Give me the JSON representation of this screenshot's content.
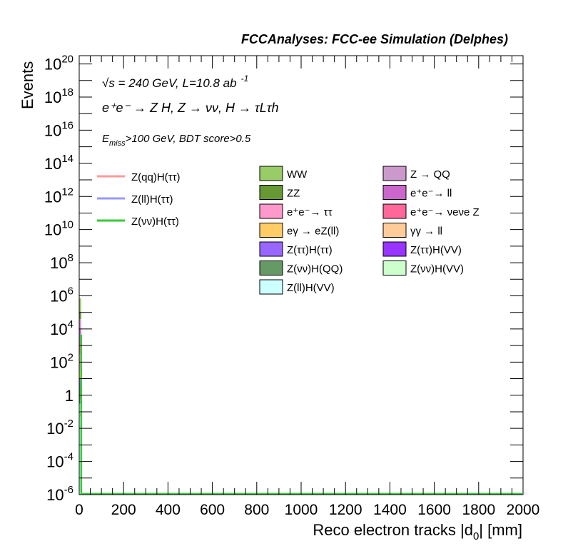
{
  "chart_data": {
    "type": "bar",
    "title": "FCCAnalyses: FCC-ee Simulation (Delphes)",
    "xlabel": "Reco electron tracks |d0| [mm]",
    "xlabel_main": "Reco electron tracks |d",
    "xlabel_sub": "0",
    "xlabel_end": "| [mm]",
    "ylabel": "Events",
    "xlim": [
      0,
      2000
    ],
    "ylim_log10": [
      -6,
      20.5
    ],
    "y_scale": "log",
    "grid": false,
    "legend_position": "top",
    "x_ticks": [
      0,
      200,
      400,
      600,
      800,
      1000,
      1200,
      1400,
      1600,
      1800,
      2000
    ],
    "x_tick_labels": [
      "0",
      "200",
      "400",
      "600",
      "800",
      "1000",
      "1200",
      "1400",
      "1600",
      "1800",
      "2000"
    ],
    "y_ticks": [
      {
        "exp": 20,
        "label": "10",
        "sup": "20"
      },
      {
        "exp": 18,
        "label": "10",
        "sup": "18"
      },
      {
        "exp": 16,
        "label": "10",
        "sup": "16"
      },
      {
        "exp": 14,
        "label": "10",
        "sup": "14"
      },
      {
        "exp": 12,
        "label": "10",
        "sup": "12"
      },
      {
        "exp": 10,
        "label": "10",
        "sup": "10"
      },
      {
        "exp": 8,
        "label": "10",
        "sup": "8"
      },
      {
        "exp": 6,
        "label": "10",
        "sup": "6"
      },
      {
        "exp": 4,
        "label": "10",
        "sup": "4"
      },
      {
        "exp": 2,
        "label": "10",
        "sup": "2"
      },
      {
        "exp": 0,
        "label": "1",
        "sup": ""
      },
      {
        "exp": -2,
        "label": "10",
        "sup": "-2"
      },
      {
        "exp": -4,
        "label": "10",
        "sup": "-4"
      },
      {
        "exp": -6,
        "label": "10",
        "sup": "-6"
      }
    ],
    "annotations": {
      "energy": "√s = 240 GeV, L=10.8 ab",
      "energy_sup": "-1",
      "process": "e⁺e⁻ → Z H, Z → νν, H → τLτh",
      "cut_main": "E",
      "cut_sub": "miss",
      "cut_rest": ">100 GeV, BDT score>0.5"
    },
    "bin": {
      "x_low": 0,
      "x_high": 10
    },
    "stack_order_bottom_to_top": [
      {
        "name": "Z(ll)H(VV)",
        "color": "#ccffff",
        "top_exp": -0.5
      },
      {
        "name": "Z(νν)H(QQ)",
        "color": "#669966",
        "top_exp": 0.5
      },
      {
        "name": "Z(ττ)H(VV)",
        "color": "#9933ff",
        "top_exp": 0.6
      },
      {
        "name": "Z(ττ)H(ττ)",
        "color": "#9966ff",
        "top_exp": 1.0
      },
      {
        "name": "eγ → eZ(ll)",
        "color": "#ffcc66",
        "top_exp": 1.5
      },
      {
        "name": "e⁺e⁻→ ττ",
        "color": "#ff99cc",
        "top_exp": 2.5
      },
      {
        "name": "e⁺e⁻→ νeνe Z",
        "color": "#ff6699",
        "top_exp": 3.2
      },
      {
        "name": "e⁺e⁻→ ll",
        "color": "#cc66cc",
        "top_exp": 4.0
      },
      {
        "name": "Z → QQ",
        "color": "#cc99cc",
        "top_exp": 4.6
      },
      {
        "name": "ZZ",
        "color": "#669933",
        "top_exp": 5.0
      },
      {
        "name": "WW",
        "color": "#99cc66",
        "top_exp": 5.85
      }
    ],
    "signal_lines": [
      {
        "name": "Z(qq)H(ττ)",
        "color": "#ff9999",
        "bin_value_exp": -1.2
      },
      {
        "name": "Z(ll)H(ττ)",
        "color": "#9999ff",
        "bin_value_exp": -0.3
      },
      {
        "name": "Z(νν)H(ττ)",
        "color": "#33cc33",
        "bin_value_exp": 3.6
      }
    ],
    "legend_signals": [
      {
        "label": "Z(qq)H(ττ)",
        "color": "#ff9999"
      },
      {
        "label": "Z(ll)H(ττ)",
        "color": "#9999ff"
      },
      {
        "label": "Z(νν)H(ττ)",
        "color": "#33cc33"
      }
    ],
    "legend_bkg_col1": [
      {
        "label": "WW",
        "color": "#99cc66"
      },
      {
        "label": "ZZ",
        "color": "#669933"
      },
      {
        "label": "e⁺e⁻→ ττ",
        "color": "#ff99cc"
      },
      {
        "label": "eγ → eZ(ll)",
        "color": "#ffcc66"
      },
      {
        "label": "Z(ττ)H(ττ)",
        "color": "#9966ff"
      },
      {
        "label": "Z(νν)H(QQ)",
        "color": "#669966"
      },
      {
        "label": "Z(ll)H(VV)",
        "color": "#ccffff"
      }
    ],
    "legend_bkg_col2": [
      {
        "label": "Z → QQ",
        "color": "#cc99cc"
      },
      {
        "label": "e⁺e⁻→ ll",
        "color": "#cc66cc"
      },
      {
        "label": "e⁺e⁻→ νeνe Z",
        "color": "#ff6699"
      },
      {
        "label": "γγ → ll",
        "color": "#ffcc99"
      },
      {
        "label": "Z(ττ)H(VV)",
        "color": "#9933ff"
      },
      {
        "label": "Z(νν)H(VV)",
        "color": "#ccffcc"
      }
    ]
  }
}
